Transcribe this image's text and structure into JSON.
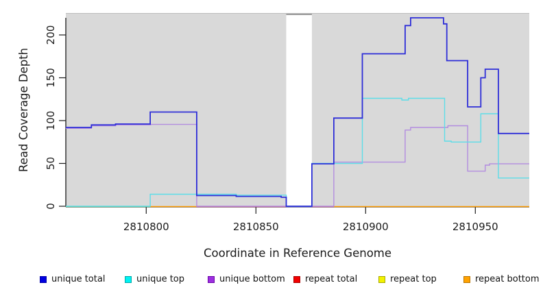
{
  "chart_data": {
    "type": "line",
    "subtype": "step-coverage-plot",
    "title": "",
    "xlabel": "Coordinate in Reference Genome",
    "ylabel": "Read Coverage Depth",
    "xlim": [
      2810763.3,
      2810974.6
    ],
    "ylim": [
      0,
      225
    ],
    "x_ticks": [
      2810800,
      2810850,
      2810900,
      2810950
    ],
    "x_tick_labels": [
      "2810800",
      "2810850",
      "2810900",
      "2810950"
    ],
    "y_ticks": [
      0,
      50,
      100,
      150,
      200
    ],
    "y_tick_labels": [
      "0",
      "50",
      "100",
      "150",
      "200"
    ],
    "grid": false,
    "panel_bg": "#d9d9d9",
    "panel_top_edge": "#bcbcbc",
    "axis_color": "#1a1a1a",
    "gap_region": {
      "from": 2810863.8,
      "to": 2810875.5,
      "fill": "#ffffff",
      "cap_color": "#9a9a9a",
      "note": "no-data white band, unique total drops to 0"
    },
    "series": [
      {
        "name": "unique bottom",
        "color": "#b28ce0",
        "width": 1.4,
        "points": [
          [
            2810763.3,
            91
          ],
          [
            2810775,
            94
          ],
          [
            2810786,
            95
          ],
          [
            2810802,
            95.5
          ],
          [
            2810823,
            0
          ],
          [
            2810885.5,
            51.5
          ],
          [
            2810918,
            89
          ],
          [
            2810920.5,
            92
          ],
          [
            2810937.5,
            94
          ],
          [
            2810946.5,
            41
          ],
          [
            2810954.5,
            48
          ],
          [
            2810956.5,
            49.5
          ]
        ]
      },
      {
        "name": "unique top",
        "color": "#5cdde8",
        "width": 1.4,
        "points": [
          [
            2810763.3,
            0
          ],
          [
            2810801.8,
            14
          ],
          [
            2810841,
            13
          ],
          [
            2810863.8,
            0
          ],
          [
            2810875.5,
            50
          ],
          [
            2810898.5,
            126
          ],
          [
            2810916.5,
            124
          ],
          [
            2810919.5,
            126
          ],
          [
            2810936,
            76
          ],
          [
            2810939,
            75
          ],
          [
            2810952.5,
            108
          ],
          [
            2810960.5,
            33
          ]
        ]
      },
      {
        "name": "unique total",
        "color": "#2d2dd8",
        "width": 1.8,
        "points": [
          [
            2810763.3,
            92
          ],
          [
            2810775,
            95
          ],
          [
            2810786,
            96
          ],
          [
            2810801.8,
            110
          ],
          [
            2810823,
            12.5
          ],
          [
            2810841,
            11.5
          ],
          [
            2810861.5,
            10.5
          ],
          [
            2810863.8,
            0
          ],
          [
            2810875.5,
            49.5
          ],
          [
            2810885.5,
            103
          ],
          [
            2810898.5,
            178
          ],
          [
            2810918,
            211
          ],
          [
            2810920.5,
            220
          ],
          [
            2810935.5,
            213
          ],
          [
            2810937,
            170
          ],
          [
            2810946.5,
            116
          ],
          [
            2810952.5,
            150
          ],
          [
            2810954.5,
            160
          ],
          [
            2810960.5,
            85
          ]
        ]
      }
    ],
    "flat_zero_series": [
      {
        "name": "repeat total",
        "value": 0
      },
      {
        "name": "repeat top",
        "value": 0
      },
      {
        "name": "repeat bottom",
        "value": 0
      }
    ],
    "zero_line_segments": [
      {
        "from": 2810763.3,
        "to": 2810801.8,
        "color": "#7ccc7c"
      },
      {
        "from": 2810801.8,
        "to": 2810823.0,
        "color": "#ff9c00"
      },
      {
        "from": 2810823.0,
        "to": 2810863.8,
        "color": "#e0517a"
      },
      {
        "from": 2810863.8,
        "to": 2810875.5,
        "color": "#6a6aff"
      },
      {
        "from": 2810875.5,
        "to": 2810885.5,
        "color": "#e0517a"
      },
      {
        "from": 2810885.5,
        "to": 2810974.6,
        "color": "#ff9c00"
      }
    ],
    "legend": [
      {
        "label": "unique total",
        "color": "#0000e0",
        "edge": "#0000a8"
      },
      {
        "label": "unique top",
        "color": "#00f2f2",
        "edge": "#00a8a8"
      },
      {
        "label": "unique bottom",
        "color": "#9d2fe0",
        "edge": "#6a00a8"
      },
      {
        "label": "repeat total",
        "color": "#f20000",
        "edge": "#a80000"
      },
      {
        "label": "repeat top",
        "color": "#f2f200",
        "edge": "#a8a800"
      },
      {
        "label": "repeat bottom",
        "color": "#ffa200",
        "edge": "#b87300"
      }
    ],
    "legend_position": "bottom"
  }
}
